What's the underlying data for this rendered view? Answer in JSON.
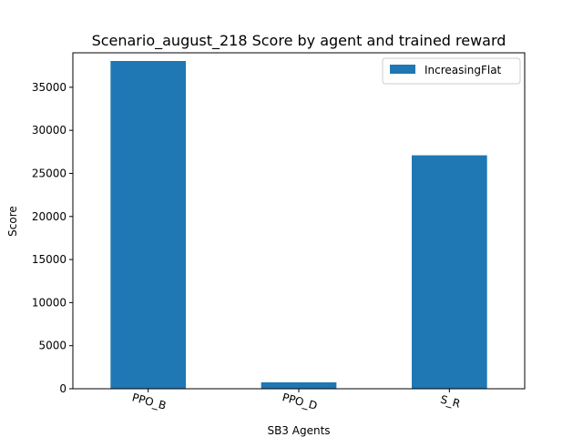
{
  "chart_data": {
    "type": "bar",
    "title": "Scenario_august_218 Score by agent and trained reward",
    "xlabel": "SB3 Agents",
    "ylabel": "Score",
    "categories": [
      "PPO_B",
      "PPO_D",
      "S_R"
    ],
    "series": [
      {
        "name": "IncreasingFlat",
        "values": [
          38050,
          750,
          27100
        ],
        "color": "#1f77b4"
      }
    ],
    "ylim": [
      0,
      39000
    ],
    "yticks": [
      0,
      5000,
      10000,
      15000,
      20000,
      25000,
      30000,
      35000
    ],
    "grid": false,
    "legend": "top-right"
  }
}
